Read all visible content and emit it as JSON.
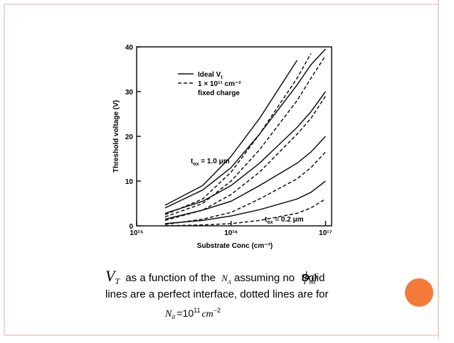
{
  "chart_data": {
    "type": "line",
    "x_label": "Substrate Conc (cm⁻³)",
    "y_label": "Threshold voltage (V)",
    "xscale": "log",
    "xlim": [
      1000000000000000.0,
      1.16e+17
    ],
    "ylim": [
      0,
      40
    ],
    "xticks": [
      {
        "value": 1000000000000000.0,
        "label": "10¹⁵"
      },
      {
        "value": 1e+16,
        "label": "10¹⁶"
      },
      {
        "value": 1e+17,
        "label": "10¹⁷"
      }
    ],
    "yticks": [
      0,
      10,
      20,
      30,
      40
    ],
    "x": [
      2000000000000000.0,
      5000000000000000.0,
      1e+16,
      2e+16,
      5e+16,
      7e+16,
      1e+17
    ],
    "series": [
      {
        "color": "#111111",
        "dash": false,
        "values": [
          4.6,
          9,
          15.5,
          24,
          37,
          null,
          null
        ]
      },
      {
        "color": "#111111",
        "dash": false,
        "values": [
          4,
          8,
          13,
          20.5,
          31.5,
          36,
          39.5
        ]
      },
      {
        "color": "#111111",
        "dash": false,
        "values": [
          2.8,
          5.5,
          9,
          14,
          22,
          25.5,
          30
        ]
      },
      {
        "color": "#111111",
        "dash": false,
        "values": [
          1.5,
          3.5,
          5.5,
          9,
          14,
          16.5,
          20
        ]
      },
      {
        "color": "#111111",
        "dash": false,
        "values": [
          0.5,
          1.2,
          2.2,
          3.6,
          6,
          7.5,
          10
        ]
      },
      {
        "color": "#111111",
        "dash": true,
        "values": [
          2.5,
          6,
          12,
          20.5,
          33,
          38.5,
          null
        ]
      },
      {
        "color": "#111111",
        "dash": true,
        "values": [
          2,
          5,
          10,
          17,
          28,
          33,
          38
        ]
      },
      {
        "color": "#111111",
        "dash": true,
        "values": [
          1.2,
          3.5,
          7,
          12,
          20.5,
          24,
          29
        ]
      },
      {
        "color": "#111111",
        "dash": true,
        "values": [
          0.3,
          1.5,
          3,
          6,
          10.5,
          13,
          16.5
        ]
      },
      {
        "color": "#111111",
        "dash": true,
        "values": [
          0,
          0.2,
          0.5,
          1.2,
          2.8,
          4,
          6
        ]
      }
    ],
    "legend": [
      {
        "text": "Ideal V",
        "sub": "t",
        "dash": false
      },
      {
        "text": "1 × 10¹¹ cm⁻²",
        "line2": "fixed charge",
        "dash": true
      }
    ],
    "annotations": [
      {
        "text": "t",
        "sub": "ox",
        "rest": " = 1.0 μm"
      },
      {
        "text": "t",
        "sub": "ox",
        "rest": " = 0.2 μm"
      }
    ]
  },
  "caption": {
    "v": "V",
    "v_sub": "T",
    "t1": "as a function of the",
    "n": "N",
    "n_sub": "A",
    "t2": "assuming no",
    "phi": "ϕ",
    "phi_sub": "ms",
    "phi_eq": "=0",
    "t3": "Solid",
    "line2": "lines are a perfect interface, dotted lines are for",
    "f_n": "N",
    "f_sub": "it",
    "f_eq": "=10",
    "f_exp": "11",
    "f_cm": "cm",
    "f_cm_exp": "−2"
  }
}
